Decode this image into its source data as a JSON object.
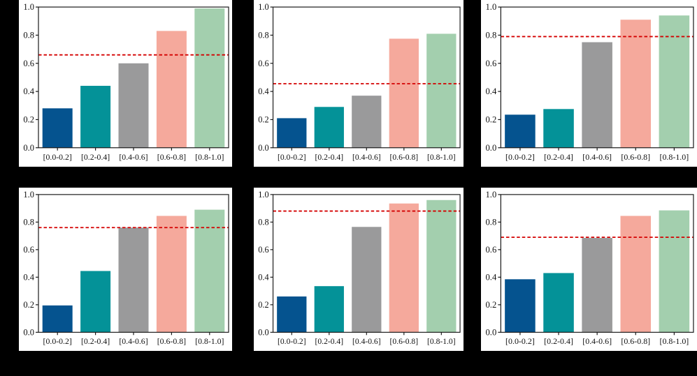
{
  "page": {
    "background": "#000000",
    "panel_background": "#ffffff"
  },
  "style": {
    "bar_colors": [
      "#05538F",
      "#049298",
      "#9A9A9B",
      "#F5A99C",
      "#A3CFAE"
    ],
    "baseline_color": "#D40000",
    "axis_color": "#1A1A1A",
    "tick_label_color": "#111111"
  },
  "chart_data": [
    {
      "type": "bar",
      "position": "top-left",
      "title": "",
      "xlabel": "",
      "ylabel": "",
      "categories": [
        "[0.0-0.2]",
        "[0.2-0.4]",
        "[0.4-0.6]",
        "[0.6-0.8]",
        "[0.8-1.0]"
      ],
      "values": [
        0.28,
        0.44,
        0.6,
        0.83,
        0.99
      ],
      "baseline": 0.66,
      "ylim": [
        0.0,
        1.0
      ],
      "yticks": [
        0.0,
        0.2,
        0.4,
        0.6,
        0.8,
        1.0
      ],
      "ytick_labels": [
        "0.0",
        "0.2",
        "0.4",
        "0.6",
        "0.8",
        "1.0"
      ],
      "grid": "off",
      "legend": "none"
    },
    {
      "type": "bar",
      "position": "top-middle",
      "title": "",
      "xlabel": "",
      "ylabel": "",
      "categories": [
        "[0.0-0.2]",
        "[0.2-0.4]",
        "[0.4-0.6]",
        "[0.6-0.8]",
        "[0.8-1.0]"
      ],
      "values": [
        0.21,
        0.29,
        0.37,
        0.775,
        0.81
      ],
      "baseline": 0.455,
      "ylim": [
        0.0,
        1.0
      ],
      "yticks": [
        0.0,
        0.2,
        0.4,
        0.6,
        0.8,
        1.0
      ],
      "ytick_labels": [
        "0.0",
        "0.2",
        "0.4",
        "0.6",
        "0.8",
        "1.0"
      ],
      "grid": "off",
      "legend": "none"
    },
    {
      "type": "bar",
      "position": "top-right",
      "title": "",
      "xlabel": "",
      "ylabel": "",
      "categories": [
        "[0.0-0.2]",
        "[0.2-0.4]",
        "[0.4-0.6]",
        "[0.6-0.8]",
        "[0.8-1.0]"
      ],
      "values": [
        0.235,
        0.275,
        0.75,
        0.91,
        0.94
      ],
      "baseline": 0.79,
      "ylim": [
        0.0,
        1.0
      ],
      "yticks": [
        0.0,
        0.2,
        0.4,
        0.6,
        0.8,
        1.0
      ],
      "ytick_labels": [
        "0.0",
        "0.2",
        "0.4",
        "0.6",
        "0.8",
        "1.0"
      ],
      "grid": "off",
      "legend": "none"
    },
    {
      "type": "bar",
      "position": "bottom-left",
      "title": "",
      "xlabel": "",
      "ylabel": "",
      "categories": [
        "[0.0-0.2]",
        "[0.2-0.4]",
        "[0.4-0.6]",
        "[0.6-0.8]",
        "[0.8-1.0]"
      ],
      "values": [
        0.195,
        0.445,
        0.76,
        0.845,
        0.89
      ],
      "baseline": 0.76,
      "ylim": [
        0.0,
        1.0
      ],
      "yticks": [
        0.0,
        0.2,
        0.4,
        0.6,
        0.8,
        1.0
      ],
      "ytick_labels": [
        "0.0",
        "0.2",
        "0.4",
        "0.6",
        "0.8",
        "1.0"
      ],
      "grid": "off",
      "legend": "none"
    },
    {
      "type": "bar",
      "position": "bottom-middle",
      "title": "",
      "xlabel": "",
      "ylabel": "",
      "categories": [
        "[0.0-0.2]",
        "[0.2-0.4]",
        "[0.4-0.6]",
        "[0.6-0.8]",
        "[0.8-1.0]"
      ],
      "values": [
        0.26,
        0.335,
        0.765,
        0.935,
        0.96
      ],
      "baseline": 0.88,
      "ylim": [
        0.0,
        1.0
      ],
      "yticks": [
        0.0,
        0.2,
        0.4,
        0.6,
        0.8,
        1.0
      ],
      "ytick_labels": [
        "0.0",
        "0.2",
        "0.4",
        "0.6",
        "0.8",
        "1.0"
      ],
      "grid": "off",
      "legend": "none"
    },
    {
      "type": "bar",
      "position": "bottom-right",
      "title": "",
      "xlabel": "",
      "ylabel": "",
      "categories": [
        "[0.0-0.2]",
        "[0.2-0.4]",
        "[0.4-0.6]",
        "[0.6-0.8]",
        "[0.8-1.0]"
      ],
      "values": [
        0.385,
        0.43,
        0.685,
        0.845,
        0.885
      ],
      "baseline": 0.69,
      "ylim": [
        0.0,
        1.0
      ],
      "yticks": [
        0.0,
        0.2,
        0.4,
        0.6,
        0.8,
        1.0
      ],
      "ytick_labels": [
        "0.0",
        "0.2",
        "0.4",
        "0.6",
        "0.8",
        "1.0"
      ],
      "grid": "off",
      "legend": "none"
    }
  ]
}
